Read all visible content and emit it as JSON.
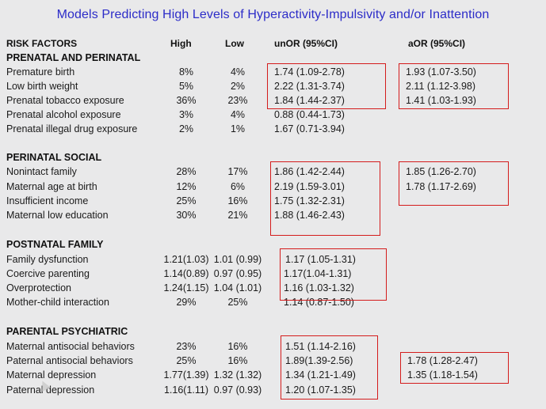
{
  "title": "Models Predicting High Levels of Hyperactivity-Impulsivity and/or Inattention",
  "headers": {
    "risk_factors": "RISK FACTORS",
    "high": "High",
    "low": "Low",
    "unor": "unOR (95%CI)",
    "aor": "aOR (95%CI)"
  },
  "sections": [
    {
      "label": "PRENATAL AND PERINATAL",
      "rows": [
        {
          "name": "Premature birth",
          "high": "8%",
          "low": "4%",
          "unor": "1.74 (1.09-2.78)",
          "aor": "1.93 (1.07-3.50)"
        },
        {
          "name": "Low birth weight",
          "high": "5%",
          "low": "2%",
          "unor": "2.22 (1.31-3.74)",
          "aor": "2.11 (1.12-3.98)"
        },
        {
          "name": "Prenatal tobacco exposure",
          "high": "36%",
          "low": "23%",
          "unor": "1.84 (1.44-2.37)",
          "aor": "1.41 (1.03-1.93)"
        },
        {
          "name": "Prenatal alcohol exposure",
          "high": "3%",
          "low": "4%",
          "unor": "0.88 (0.44-1.73)",
          "aor": ""
        },
        {
          "name": "Prenatal illegal drug exposure",
          "high": "2%",
          "low": "1%",
          "unor": "1.67 (0.71-3.94)",
          "aor": ""
        }
      ]
    },
    {
      "label": "PERINATAL SOCIAL",
      "rows": [
        {
          "name": "Nonintact family",
          "high": "28%",
          "low": "17%",
          "unor": "1.86 (1.42-2.44)",
          "aor": "1.85 (1.26-2.70)"
        },
        {
          "name": "Maternal age at birth",
          "high": "12%",
          "low": "6%",
          "unor": "2.19 (1.59-3.01)",
          "aor": "1.78 (1.17-2.69)"
        },
        {
          "name": "Insufficient income",
          "high": "25%",
          "low": "16%",
          "unor": "1.75 (1.32-2.31)",
          "aor": ""
        },
        {
          "name": "Maternal low education",
          "high": "30%",
          "low": "21%",
          "unor": "1.88 (1.46-2.43)",
          "aor": ""
        }
      ]
    },
    {
      "label": "POSTNATAL FAMILY",
      "rows": [
        {
          "name": "Family dysfunction",
          "high": "1.21(1.03)",
          "low": "1.01 (0.99)",
          "unor": "1.17 (1.05-1.31)",
          "aor": ""
        },
        {
          "name": "Coercive parenting",
          "high": "1.14(0.89)",
          "low": "0.97 (0.95)",
          "unor": "1.17(1.04-1.31)",
          "aor": ""
        },
        {
          "name": "Overprotection",
          "high": "1.24(1.15)",
          "low": "1.04 (1.01)",
          "unor": "1.16 (1.03-1.32)",
          "aor": ""
        },
        {
          "name": "Mother-child interaction",
          "high": "29%",
          "low": "25%",
          "unor": "1.14 (0.87-1.50)",
          "aor": ""
        }
      ]
    },
    {
      "label": "PARENTAL PSYCHIATRIC",
      "rows": [
        {
          "name": "Maternal antisocial behaviors",
          "high": "23%",
          "low": "16%",
          "unor": "1.51 (1.14-2.16)",
          "aor": ""
        },
        {
          "name": "Paternal antisocial behaviors",
          "high": "25%",
          "low": "16%",
          "unor": "1.89(1.39-2.56)",
          "aor": "1.78 (1.28-2.47)"
        },
        {
          "name": "Maternal depression",
          "high": "1.77(1.39)",
          "low": "1.32 (1.32)",
          "unor": "1.34 (1.21-1.49)",
          "aor": "1.35 (1.18-1.54)"
        },
        {
          "name": "Paternal depression",
          "high": "1.16(1.11)",
          "low": "0.97 (0.93)",
          "unor": "1.20 (1.07-1.35)",
          "aor": ""
        }
      ]
    }
  ],
  "highlight_color": "#d41c1c"
}
